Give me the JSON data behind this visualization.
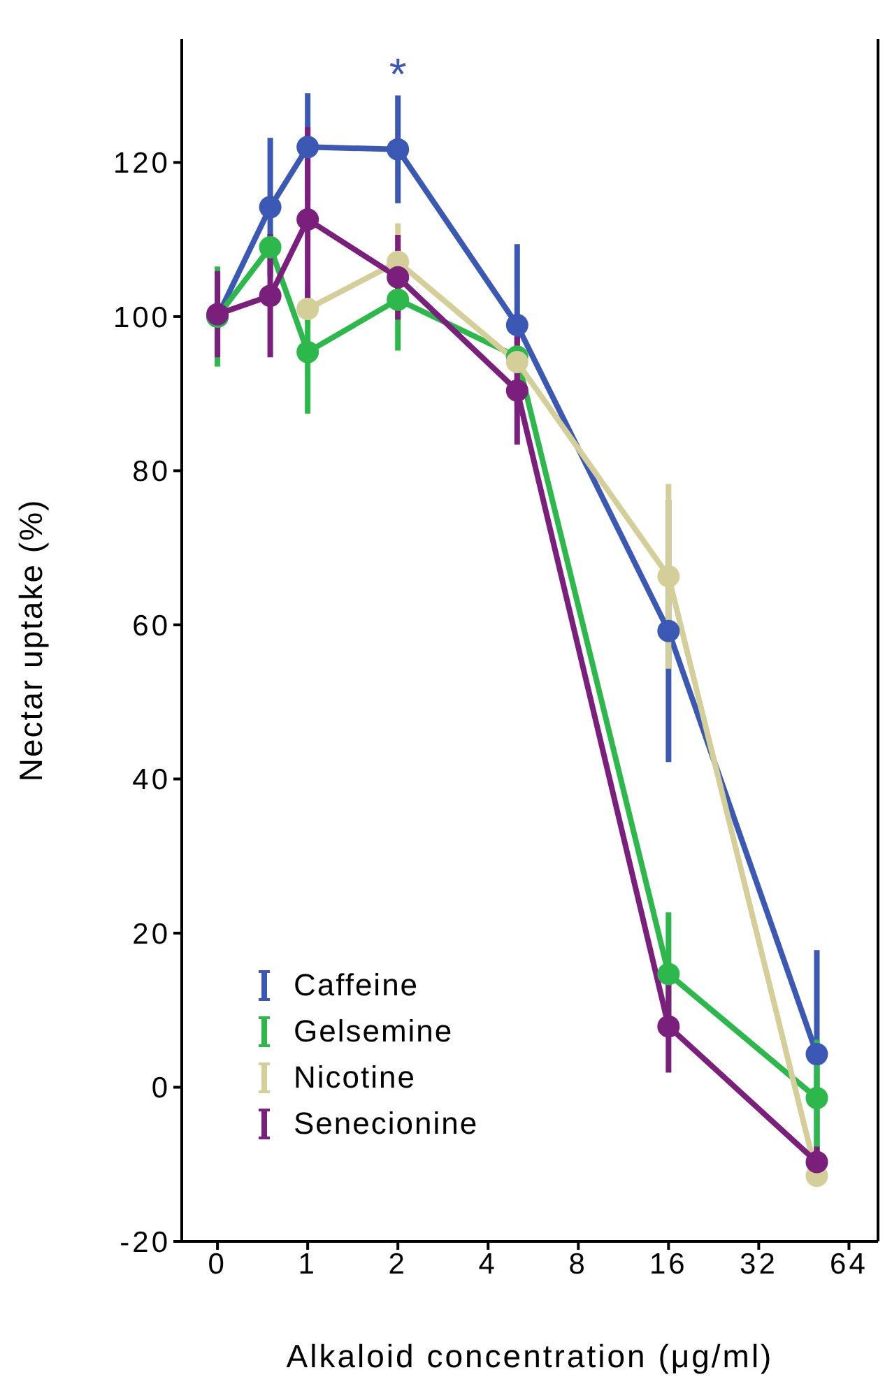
{
  "chart_data": {
    "type": "line",
    "xlabel": "Alkaloid concentration (μg/ml)",
    "ylabel": "Nectar uptake (%)",
    "x": [
      0.5,
      0.75,
      1,
      2,
      5,
      16,
      50
    ],
    "xlim": [
      0.38,
      80
    ],
    "xticks": [
      {
        "value": 0.5,
        "label": "0"
      },
      1,
      2,
      4,
      8,
      16,
      32,
      64
    ],
    "log": "x",
    "ylim": [
      -20,
      136
    ],
    "yticks": [
      -20,
      0,
      20,
      40,
      60,
      80,
      100,
      120
    ],
    "series": [
      {
        "name": "Caffeine",
        "color": "#3b58b5",
        "values": [
          100,
          114.2,
          122,
          121.7,
          98.9,
          59.2,
          4.3
        ],
        "errors": [
          null,
          9,
          7,
          7,
          10.5,
          17,
          13.5
        ]
      },
      {
        "name": "Gelsemine",
        "color": "#2cb84a",
        "values": [
          100,
          109,
          95.4,
          102.2,
          94.8,
          14.7,
          -1.4
        ],
        "errors": [
          6.5,
          null,
          8,
          6.6,
          null,
          8,
          7.6
        ]
      },
      {
        "name": "Nicotine",
        "color": "#d4cf98",
        "values": [
          null,
          null,
          101,
          107.1,
          94.1,
          66.3,
          -11.5
        ],
        "errors": [
          null,
          null,
          null,
          5,
          null,
          12,
          null
        ]
      },
      {
        "name": "Senecionine",
        "color": "#7a1f7c",
        "values": [
          100.3,
          102.7,
          112.6,
          105.1,
          90.4,
          7.9,
          -9.7
        ],
        "errors": [
          5.6,
          8,
          12,
          5.5,
          7,
          6,
          2
        ]
      }
    ],
    "annotations": [
      {
        "text": "*",
        "x": 2,
        "y": 121.7
      }
    ],
    "marker": "circle",
    "legend": "bottom left",
    "grid": false
  }
}
